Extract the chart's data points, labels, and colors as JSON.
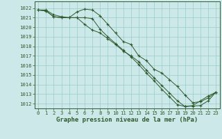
{
  "background_color": "#cce8e8",
  "grid_color": "#99cccc",
  "line_color": "#2d5a2d",
  "title": "Graphe pression niveau de la mer (hPa)",
  "xlim": [
    -0.5,
    23.5
  ],
  "ylim": [
    1011.5,
    1022.7
  ],
  "yticks": [
    1012,
    1013,
    1014,
    1015,
    1016,
    1017,
    1018,
    1019,
    1020,
    1021,
    1022
  ],
  "xticks": [
    0,
    1,
    2,
    3,
    4,
    5,
    6,
    7,
    8,
    9,
    10,
    11,
    12,
    13,
    14,
    15,
    16,
    17,
    18,
    19,
    20,
    21,
    22,
    23
  ],
  "series": [
    [
      1021.8,
      1021.8,
      1021.3,
      1021.1,
      1021.0,
      1021.6,
      1021.9,
      1021.8,
      1021.2,
      1020.3,
      1019.4,
      1018.5,
      1018.2,
      1017.0,
      1016.5,
      1015.6,
      1015.2,
      1014.5,
      1013.8,
      1012.9,
      1012.1,
      1012.2,
      1012.6,
      1013.2
    ],
    [
      1021.8,
      1021.7,
      1021.1,
      1021.0,
      1021.0,
      1021.0,
      1020.3,
      1019.7,
      1019.4,
      1018.8,
      1018.2,
      1017.5,
      1017.0,
      1016.4,
      1015.5,
      1014.7,
      1013.9,
      1013.1,
      1012.3,
      1011.7,
      1011.75,
      1011.8,
      1012.3,
      1013.2
    ],
    [
      1021.8,
      1021.7,
      1021.1,
      1021.0,
      1021.0,
      1021.0,
      1021.0,
      1020.9,
      1019.8,
      1019.0,
      1018.3,
      1017.6,
      1016.9,
      1016.1,
      1015.2,
      1014.4,
      1013.5,
      1012.7,
      1011.9,
      1011.7,
      1011.8,
      1012.3,
      1012.8,
      1013.2
    ]
  ]
}
